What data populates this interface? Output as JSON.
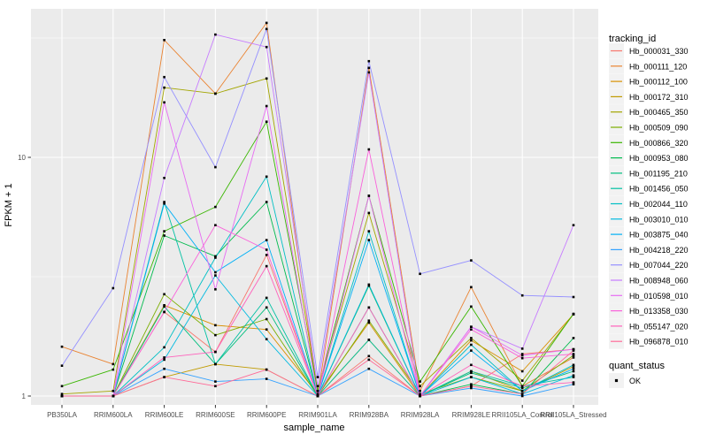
{
  "figure": {
    "background": "#FFFFFF",
    "panel_background": "#EBEBEB",
    "grid_color": "#FFFFFF",
    "tick_color": "#333333",
    "tick_label_color": "#4D4D4D",
    "axis_title_color": "#000000",
    "marker_color": "#000000",
    "legend_key_background": "#F2F2F2"
  },
  "chart_data": {
    "type": "line",
    "title": "",
    "xlabel": "sample_name",
    "ylabel": "FPKM + 1",
    "y_scale": "log10",
    "y_ticks": [
      1,
      10
    ],
    "y_minor_ticks": [
      3.1623,
      31.623
    ],
    "ylim": [
      0.95,
      42
    ],
    "grid": true,
    "legend_position": "right",
    "legend_title": "tracking_id",
    "legend2_title": "quant_status",
    "legend2_items": [
      {
        "label": "OK",
        "marker": "square",
        "color": "#000000"
      }
    ],
    "x_categories": [
      "PB350LA",
      "RRIM600LA",
      "RRIM600LE",
      "RRIM600SE",
      "RRIM600PE",
      "RRIM901LA",
      "RRIM928BA",
      "RRIM928LA",
      "RRIM928LE",
      "RRII105LA_Control",
      "RRII105LA_Stressed"
    ],
    "series": [
      {
        "name": "Hb_000031_330",
        "color": "#F8766D",
        "values": [
          1.0,
          1.0,
          2.25,
          1.53,
          3.9,
          1.0,
          1.47,
          1.0,
          1.1,
          1.5,
          1.57
        ]
      },
      {
        "name": "Hb_000111_120",
        "color": "#EA8331",
        "values": [
          1.61,
          1.36,
          31.0,
          18.5,
          36.6,
          1.0,
          23.7,
          1.05,
          2.86,
          1.1,
          1.45
        ]
      },
      {
        "name": "Hb_000112_100",
        "color": "#D89000",
        "values": [
          1.0,
          1.0,
          2.4,
          1.98,
          1.9,
          1.02,
          2.03,
          1.0,
          1.71,
          1.27,
          2.2
        ]
      },
      {
        "name": "Hb_000172_310",
        "color": "#C09B00",
        "values": [
          1.0,
          1.0,
          1.2,
          1.36,
          1.29,
          1.0,
          1.72,
          1.0,
          1.27,
          1.05,
          1.33
        ]
      },
      {
        "name": "Hb_000465_350",
        "color": "#A3A500",
        "values": [
          1.02,
          1.05,
          19.6,
          18.5,
          21.4,
          1.05,
          5.85,
          1.1,
          1.75,
          1.16,
          2.2
        ]
      },
      {
        "name": "Hb_000509_090",
        "color": "#7CAE00",
        "values": [
          1.0,
          1.0,
          2.67,
          1.8,
          2.1,
          1.0,
          2.07,
          1.02,
          1.2,
          1.05,
          1.48
        ]
      },
      {
        "name": "Hb_000866_320",
        "color": "#39B600",
        "values": [
          1.1,
          1.29,
          4.9,
          6.2,
          14.1,
          1.05,
          6.9,
          1.15,
          2.37,
          1.1,
          2.21
        ]
      },
      {
        "name": "Hb_000953_080",
        "color": "#00BB4E",
        "values": [
          1.0,
          1.0,
          4.7,
          3.85,
          6.5,
          1.0,
          2.9,
          1.0,
          1.12,
          1.02,
          1.75
        ]
      },
      {
        "name": "Hb_001195_210",
        "color": "#00BF7D",
        "values": [
          1.0,
          1.0,
          2.37,
          1.36,
          2.35,
          1.0,
          2.35,
          1.0,
          1.25,
          1.08,
          1.27
        ]
      },
      {
        "name": "Hb_001456_050",
        "color": "#00C1A3",
        "values": [
          1.0,
          1.0,
          6.5,
          1.36,
          2.58,
          1.0,
          1.72,
          1.0,
          1.27,
          1.1,
          1.2
        ]
      },
      {
        "name": "Hb_002044_110",
        "color": "#00BFC4",
        "values": [
          1.0,
          1.0,
          1.6,
          3.8,
          8.3,
          1.0,
          4.9,
          1.0,
          1.64,
          1.05,
          1.35
        ]
      },
      {
        "name": "Hb_003010_010",
        "color": "#00BAE0",
        "values": [
          1.0,
          1.0,
          1.42,
          3.2,
          1.73,
          1.0,
          2.93,
          1.0,
          1.2,
          1.02,
          1.22
        ]
      },
      {
        "name": "Hb_003875_040",
        "color": "#00B0F6",
        "values": [
          1.0,
          1.0,
          6.4,
          3.3,
          4.5,
          1.0,
          4.5,
          1.0,
          1.55,
          1.05,
          1.3
        ]
      },
      {
        "name": "Hb_004218_220",
        "color": "#35A2FF",
        "values": [
          1.0,
          1.0,
          1.3,
          1.15,
          1.18,
          1.0,
          1.3,
          1.0,
          1.08,
          1.0,
          1.12
        ]
      },
      {
        "name": "Hb_007044_220",
        "color": "#9590FF",
        "values": [
          1.34,
          2.83,
          21.7,
          9.1,
          34.5,
          1.2,
          25.3,
          3.25,
          3.7,
          2.64,
          2.6
        ]
      },
      {
        "name": "Hb_008948_060",
        "color": "#C77CFF",
        "values": [
          1.0,
          1.0,
          8.2,
          32.7,
          29.0,
          1.1,
          22.7,
          1.0,
          1.95,
          1.58,
          5.2
        ]
      },
      {
        "name": "Hb_010598_010",
        "color": "#E76BF3",
        "values": [
          1.0,
          1.0,
          17.0,
          2.8,
          16.4,
          1.0,
          6.9,
          1.0,
          1.95,
          1.48,
          1.57
        ]
      },
      {
        "name": "Hb_013358_030",
        "color": "#FA62DB",
        "values": [
          1.0,
          1.0,
          2.25,
          5.2,
          4.1,
          1.0,
          10.8,
          1.0,
          1.9,
          1.44,
          1.5
        ]
      },
      {
        "name": "Hb_055147_020",
        "color": "#FF62BC",
        "values": [
          1.0,
          1.0,
          1.45,
          1.53,
          3.5,
          1.0,
          2.35,
          1.0,
          1.35,
          1.1,
          1.14
        ]
      },
      {
        "name": "Hb_096878_010",
        "color": "#FF6A98",
        "values": [
          1.0,
          1.0,
          1.2,
          1.1,
          1.29,
          1.0,
          1.42,
          1.0,
          1.1,
          1.02,
          1.55
        ]
      }
    ]
  }
}
